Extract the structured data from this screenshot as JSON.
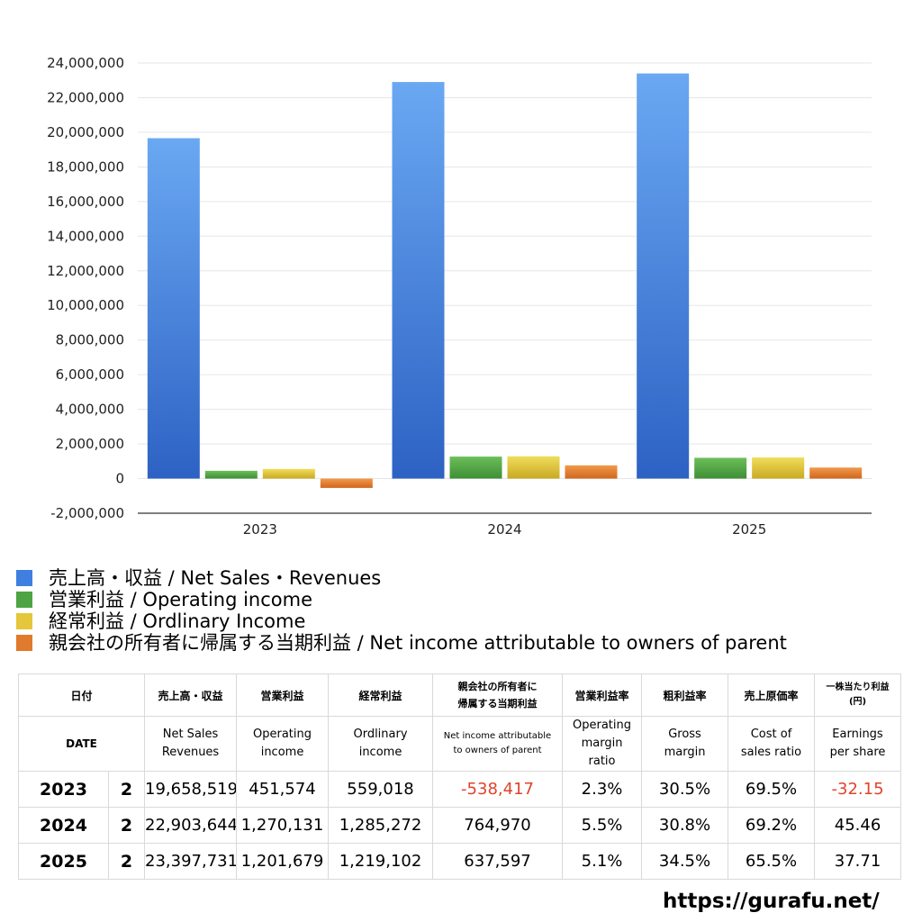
{
  "chart_data": {
    "type": "bar",
    "categories": [
      "2023",
      "2024",
      "2025"
    ],
    "series": [
      {
        "name": "売上高・収益 / Net Sales・Revenues",
        "values": [
          19658519,
          22903644,
          23397731
        ],
        "color_top": "#6aa8f2",
        "color_bottom": "#2d62c4"
      },
      {
        "name": "営業利益 / Operating income",
        "values": [
          451574,
          1270131,
          1201679
        ],
        "color_top": "#6cbf5a",
        "color_bottom": "#3e8e35"
      },
      {
        "name": "経常利益 / Ordlinary Income",
        "values": [
          559018,
          1285272,
          1219102
        ],
        "color_top": "#f0dd5a",
        "color_bottom": "#c9a923"
      },
      {
        "name": "親会社の所有者に帰属する当期利益 / Net income attributable to owners of parent",
        "values": [
          -538417,
          764970,
          637597
        ],
        "color_top": "#f19a4a",
        "color_bottom": "#d0661f"
      }
    ],
    "y_ticks": [
      "24,000,000",
      "22,000,000",
      "20,000,000",
      "18,000,000",
      "16,000,000",
      "14,000,000",
      "12,000,000",
      "10,000,000",
      "8,000,000",
      "6,000,000",
      "4,000,000",
      "2,000,000",
      "0",
      "-2,000,000"
    ],
    "ylim": [
      -2000000,
      24000000
    ],
    "grid": true,
    "legend_position": "bottom-left"
  },
  "legend": [
    {
      "label": "売上高・収益 / Net Sales・Revenues",
      "color": "#3f7fe0"
    },
    {
      "label": "営業利益 / Operating income",
      "color": "#4ea344"
    },
    {
      "label": "経常利益 / Ordlinary Income",
      "color": "#e6c63a"
    },
    {
      "label": "親会社の所有者に帰属する当期利益 / Net income attributable to owners of parent",
      "color": "#e07a2c"
    }
  ],
  "table": {
    "header_jp": {
      "date": "日付",
      "sales": "売上高・収益",
      "op": "営業利益",
      "ord": "経常利益",
      "ni_line1": "親会社の所有者に",
      "ni_line2": "帰属する当期利益",
      "opm": "営業利益率",
      "gm": "粗利益率",
      "cos": "売上原価率",
      "eps_line1": "一株当たり利益",
      "eps_line2": "(円)"
    },
    "header_en": {
      "date": "DATE",
      "sales_line1": "Net Sales",
      "sales_line2": "Revenues",
      "op_line1": "Operating",
      "op_line2": "income",
      "ord_line1": "Ordlinary",
      "ord_line2": "income",
      "ni_line1": "Net income attributable",
      "ni_line2": "to owners of parent",
      "opm_line1": "Operating",
      "opm_line2": "margin",
      "opm_line3": "ratio",
      "gm_line1": "Gross",
      "gm_line2": "margin",
      "cos_line1": "Cost of",
      "cos_line2": "sales ratio",
      "eps_line1": "Earnings",
      "eps_line2": "per share"
    },
    "rows": [
      {
        "year": "2023",
        "count": "2",
        "sales": "19,658,519",
        "op": "451,574",
        "ord": "559,018",
        "ni": "-538,417",
        "opm": "2.3%",
        "gm": "30.5%",
        "cos": "69.5%",
        "eps": "-32.15"
      },
      {
        "year": "2024",
        "count": "2",
        "sales": "22,903,644",
        "op": "1,270,131",
        "ord": "1,285,272",
        "ni": "764,970",
        "opm": "5.5%",
        "gm": "30.8%",
        "cos": "69.2%",
        "eps": "45.46"
      },
      {
        "year": "2025",
        "count": "2",
        "sales": "23,397,731",
        "op": "1,201,679",
        "ord": "1,219,102",
        "ni": "637,597",
        "opm": "5.1%",
        "gm": "34.5%",
        "cos": "65.5%",
        "eps": "37.71"
      }
    ]
  },
  "footer": {
    "url": "https://gurafu.net/"
  }
}
